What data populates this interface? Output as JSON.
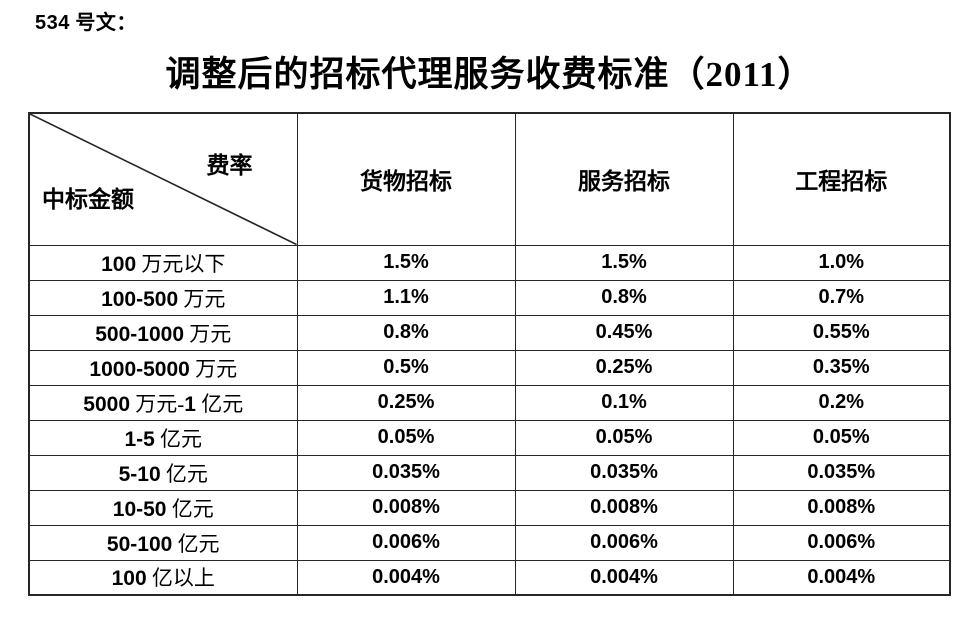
{
  "document": {
    "doc_label": "534 号文：",
    "title": "调整后的招标代理服务收费标准（2011）"
  },
  "table": {
    "corner_top_right": "费率",
    "corner_bottom_left": "中标金额",
    "columns": [
      "货物招标",
      "服务招标",
      "工程招标"
    ],
    "rows": [
      {
        "label": "100 万元以下",
        "values": [
          "1.5%",
          "1.5%",
          "1.0%"
        ]
      },
      {
        "label": "100-500 万元",
        "values": [
          "1.1%",
          "0.8%",
          "0.7%"
        ]
      },
      {
        "label": "500-1000 万元",
        "values": [
          "0.8%",
          "0.45%",
          "0.55%"
        ]
      },
      {
        "label": "1000-5000 万元",
        "values": [
          "0.5%",
          "0.25%",
          "0.35%"
        ]
      },
      {
        "label": "5000 万元-1 亿元",
        "values": [
          "0.25%",
          "0.1%",
          "0.2%"
        ]
      },
      {
        "label": "1-5 亿元",
        "values": [
          "0.05%",
          "0.05%",
          "0.05%"
        ]
      },
      {
        "label": "5-10 亿元",
        "values": [
          "0.035%",
          "0.035%",
          "0.035%"
        ]
      },
      {
        "label": "10-50 亿元",
        "values": [
          "0.008%",
          "0.008%",
          "0.008%"
        ]
      },
      {
        "label": "50-100 亿元",
        "values": [
          "0.006%",
          "0.006%",
          "0.006%"
        ]
      },
      {
        "label": "100 亿以上",
        "values": [
          "0.004%",
          "0.004%",
          "0.004%"
        ]
      }
    ]
  },
  "colors": {
    "background": "#ffffff",
    "text": "#000000",
    "border": "#262626"
  }
}
